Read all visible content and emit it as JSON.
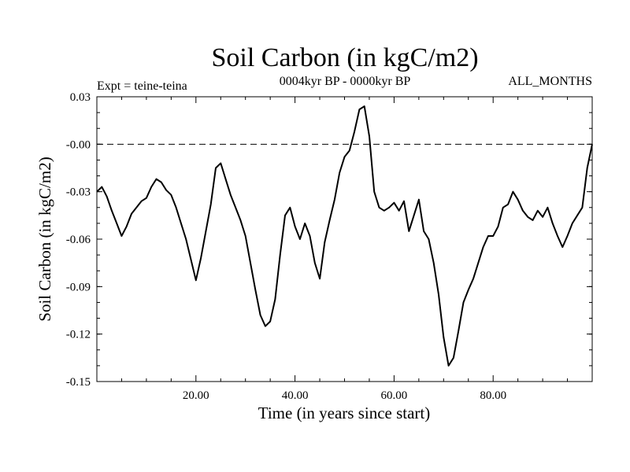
{
  "chart_data": {
    "type": "line",
    "title": "Soil Carbon (in kgC/m2)",
    "subtitle": "0004kyr BP - 0000kyr BP",
    "left_annotation": "Expt = teine-teina",
    "right_annotation": "ALL_MONTHS",
    "xlabel": "Time (in years since start)",
    "ylabel": "Soil Carbon (in kgC/m2)",
    "xlim": [
      0,
      100
    ],
    "ylim": [
      -0.15,
      0.03
    ],
    "x_ticks": [
      20,
      40,
      60,
      80
    ],
    "x_tick_labels": [
      "20.00",
      "40.00",
      "60.00",
      "80.00"
    ],
    "y_ticks": [
      0.03,
      0.0,
      -0.03,
      -0.06,
      -0.09,
      -0.12,
      -0.15
    ],
    "y_tick_labels": [
      "0.03",
      "-0.00",
      "-0.03",
      "-0.06",
      "-0.09",
      "-0.12",
      "-0.15"
    ],
    "zero_line": {
      "y": 0.0,
      "style": "dashed"
    },
    "series": [
      {
        "name": "Soil Carbon",
        "x": [
          0,
          1,
          2,
          3,
          4,
          5,
          6,
          7,
          8,
          9,
          10,
          11,
          12,
          13,
          14,
          15,
          16,
          17,
          18,
          19,
          20,
          21,
          22,
          23,
          24,
          25,
          26,
          27,
          28,
          29,
          30,
          31,
          32,
          33,
          34,
          35,
          36,
          37,
          38,
          39,
          40,
          41,
          42,
          43,
          44,
          45,
          46,
          47,
          48,
          49,
          50,
          51,
          52,
          53,
          54,
          55,
          56,
          57,
          58,
          59,
          60,
          61,
          62,
          63,
          64,
          65,
          66,
          67,
          68,
          69,
          70,
          71,
          72,
          73,
          74,
          75,
          76,
          77,
          78,
          79,
          80,
          81,
          82,
          83,
          84,
          85,
          86,
          87,
          88,
          89,
          90,
          91,
          92,
          93,
          94,
          95,
          96,
          97,
          98,
          99,
          100
        ],
        "values": [
          -0.03,
          -0.027,
          -0.033,
          -0.042,
          -0.05,
          -0.058,
          -0.052,
          -0.044,
          -0.04,
          -0.036,
          -0.034,
          -0.027,
          -0.022,
          -0.024,
          -0.029,
          -0.032,
          -0.04,
          -0.05,
          -0.06,
          -0.073,
          -0.086,
          -0.072,
          -0.055,
          -0.038,
          -0.015,
          -0.012,
          -0.022,
          -0.032,
          -0.04,
          -0.048,
          -0.058,
          -0.075,
          -0.092,
          -0.108,
          -0.115,
          -0.112,
          -0.098,
          -0.07,
          -0.045,
          -0.04,
          -0.052,
          -0.06,
          -0.05,
          -0.058,
          -0.075,
          -0.085,
          -0.062,
          -0.048,
          -0.035,
          -0.018,
          -0.008,
          -0.004,
          0.008,
          0.022,
          0.024,
          0.005,
          -0.03,
          -0.04,
          -0.042,
          -0.04,
          -0.037,
          -0.042,
          -0.036,
          -0.055,
          -0.045,
          -0.035,
          -0.055,
          -0.06,
          -0.075,
          -0.095,
          -0.122,
          -0.14,
          -0.135,
          -0.118,
          -0.1,
          -0.092,
          -0.085,
          -0.075,
          -0.065,
          -0.058,
          -0.058,
          -0.052,
          -0.04,
          -0.038,
          -0.03,
          -0.035,
          -0.042,
          -0.046,
          -0.048,
          -0.042,
          -0.046,
          -0.04,
          -0.05,
          -0.058,
          -0.065,
          -0.058,
          -0.05,
          -0.045,
          -0.04,
          -0.015,
          0.0
        ]
      }
    ]
  }
}
